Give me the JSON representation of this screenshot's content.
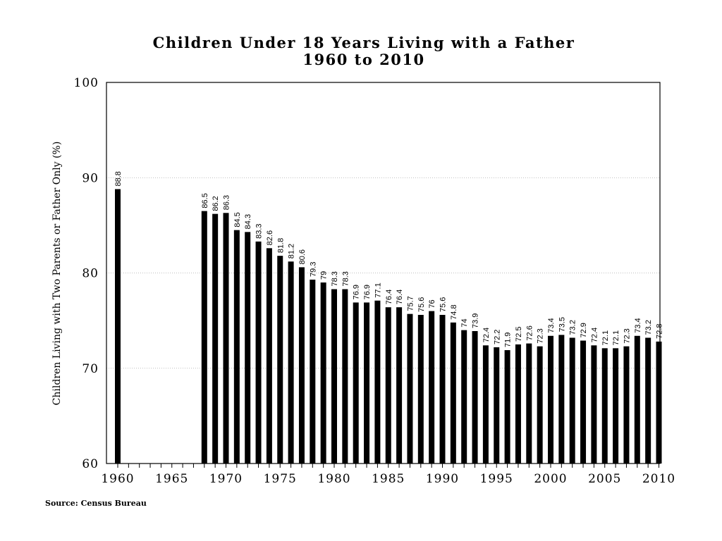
{
  "chart_data": {
    "type": "bar",
    "title": "Children Under 18 Years Living with a Father",
    "subtitle": "1960 to 2010",
    "ylabel": "Children Living with Two Parents or Father Only (%)",
    "xlabel": "",
    "source": "Source: Census Bureau",
    "ylim": [
      60,
      100
    ],
    "yticks": [
      60,
      70,
      80,
      90,
      100
    ],
    "xlim": [
      1959,
      2011
    ],
    "xticks": [
      1960,
      1965,
      1970,
      1975,
      1980,
      1985,
      1990,
      1995,
      2000,
      2005,
      2010
    ],
    "grid": true,
    "bar_color": "#000000",
    "x": [
      1960,
      1968,
      1969,
      1970,
      1971,
      1972,
      1973,
      1974,
      1975,
      1976,
      1977,
      1978,
      1979,
      1980,
      1981,
      1982,
      1983,
      1984,
      1985,
      1986,
      1987,
      1988,
      1989,
      1990,
      1991,
      1992,
      1993,
      1994,
      1995,
      1996,
      1997,
      1998,
      1999,
      2000,
      2001,
      2002,
      2003,
      2004,
      2005,
      2006,
      2007,
      2008,
      2009,
      2010
    ],
    "values": [
      88.8,
      86.5,
      86.2,
      86.3,
      84.5,
      84.3,
      83.3,
      82.6,
      81.8,
      81.2,
      80.6,
      79.3,
      79,
      78.3,
      78.3,
      76.9,
      76.9,
      77.1,
      76.4,
      76.4,
      75.7,
      75.6,
      76,
      75.6,
      74.8,
      74,
      73.9,
      72.4,
      72.2,
      71.9,
      72.5,
      72.6,
      72.3,
      73.4,
      73.5,
      73.2,
      72.9,
      72.4,
      72.1,
      72.1,
      72.3,
      73.4,
      73.2,
      72.8
    ],
    "labels": [
      "88.8",
      "86.5",
      "86.2",
      "86.3",
      "84.5",
      "84.3",
      "83.3",
      "82.6",
      "81.8",
      "81.2",
      "80.6",
      "79.3",
      "79",
      "78.3",
      "78.3",
      "76.9",
      "76.9",
      "77.1",
      "76.4",
      "76.4",
      "75.7",
      "75.6",
      "76",
      "75.6",
      "74.8",
      "74",
      "73.9",
      "72.4",
      "72.2",
      "71.9",
      "72.5",
      "72.6",
      "72.3",
      "73.4",
      "73.5",
      "73.2",
      "72.9",
      "72.4",
      "72.1",
      "72.1",
      "72.3",
      "73.4",
      "73.2",
      "72.8"
    ]
  }
}
